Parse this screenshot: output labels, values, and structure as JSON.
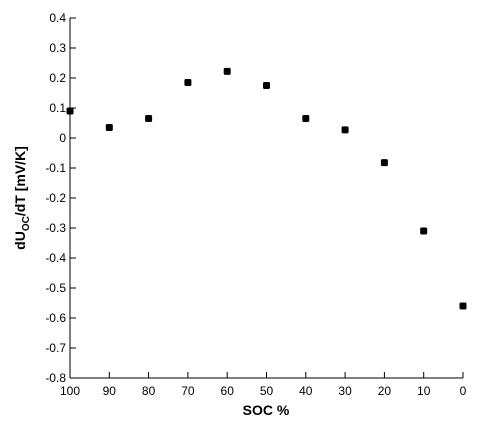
{
  "chart_data": {
    "type": "scatter",
    "x_label": "SOC %",
    "y_label": {
      "main": "dU",
      "sub": "OC",
      "rest": "/dT  [mV/K]"
    },
    "x": [
      100,
      90,
      80,
      70,
      60,
      50,
      40,
      30,
      20,
      10,
      0
    ],
    "values": [
      0.09,
      0.035,
      0.065,
      0.185,
      0.222,
      0.175,
      0.065,
      0.027,
      -0.082,
      -0.31,
      -0.56
    ],
    "color": "#000000",
    "xlim": [
      100,
      0
    ],
    "xticks": [
      100,
      90,
      80,
      70,
      60,
      50,
      40,
      30,
      20,
      10,
      0
    ],
    "ylim": [
      -0.8,
      0.4
    ],
    "yticks": [
      0.4,
      0.3,
      0.2,
      0.1,
      0,
      -0.1,
      -0.2,
      -0.3,
      -0.4,
      -0.5,
      -0.6,
      -0.7,
      -0.8
    ],
    "grid": false
  }
}
